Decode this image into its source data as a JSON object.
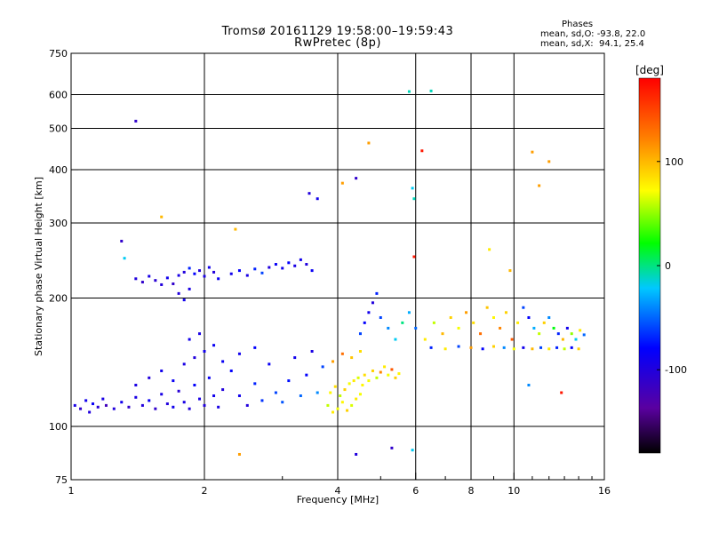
{
  "header": {
    "title_line1": "Tromsø 20161129 19:58:00–19:59:43",
    "title_line2": "RwPretec (8p)",
    "phases_heading": "Phases",
    "phases_o": "mean, sd,O: -93.8, 22.0",
    "phases_x": "mean, sd,X:  94.1, 25.4"
  },
  "chart_data": {
    "type": "scatter",
    "xlabel": "Frequency [MHz]",
    "ylabel": "Stationary phase Virtual Height [km]",
    "x_scale": "log",
    "y_scale": "log",
    "xlim": [
      1,
      16
    ],
    "ylim": [
      75,
      750
    ],
    "grid": true,
    "x_ticks": [
      1,
      2,
      4,
      6,
      8,
      10,
      16
    ],
    "x_tick_labels": [
      "1",
      "2",
      "4",
      "6",
      "8",
      "10",
      "16"
    ],
    "x_minor_ticks": [
      3,
      5,
      7,
      9,
      11,
      12,
      13,
      14,
      15
    ],
    "y_ticks": [
      75,
      100,
      200,
      300,
      400,
      500,
      600,
      750
    ],
    "y_tick_labels": [
      "75",
      "100",
      "200",
      "300",
      "400",
      "500",
      "600",
      "750"
    ],
    "colorbar": {
      "label": "[deg]",
      "range": [
        -180,
        180
      ],
      "ticks": [
        100,
        0,
        -100
      ],
      "tick_labels": [
        "100",
        "0",
        "-100"
      ]
    },
    "series": [
      {
        "points": [
          [
            1.02,
            112,
            -95
          ],
          [
            1.05,
            110,
            -110
          ],
          [
            1.08,
            115,
            -90
          ],
          [
            1.1,
            108,
            -100
          ],
          [
            1.12,
            113,
            -85
          ],
          [
            1.15,
            111,
            -105
          ],
          [
            1.18,
            116,
            -95
          ],
          [
            1.2,
            112,
            -120
          ],
          [
            1.25,
            110,
            -100
          ],
          [
            1.3,
            114,
            -90
          ],
          [
            1.35,
            111,
            -110
          ],
          [
            1.4,
            117,
            -95
          ],
          [
            1.45,
            112,
            -100
          ],
          [
            1.5,
            115,
            -85
          ],
          [
            1.55,
            110,
            -110
          ],
          [
            1.6,
            119,
            -95
          ],
          [
            1.65,
            113,
            -100
          ],
          [
            1.7,
            111,
            -90
          ],
          [
            1.75,
            121,
            -105
          ],
          [
            1.8,
            114,
            -95
          ],
          [
            1.85,
            110,
            -100
          ],
          [
            1.9,
            125,
            -80
          ],
          [
            1.95,
            116,
            -95
          ],
          [
            2.0,
            112,
            -100
          ],
          [
            2.05,
            130,
            -85
          ],
          [
            2.1,
            118,
            -90
          ],
          [
            2.15,
            111,
            -95
          ],
          [
            2.2,
            122,
            -100
          ],
          [
            2.3,
            135,
            -80
          ],
          [
            2.4,
            118,
            -90
          ],
          [
            2.5,
            112,
            -100
          ],
          [
            2.6,
            126,
            -70
          ],
          [
            2.7,
            115,
            -65
          ],
          [
            2.8,
            140,
            -85
          ],
          [
            2.9,
            120,
            -60
          ],
          [
            3.0,
            114,
            -55
          ],
          [
            3.1,
            128,
            -75
          ],
          [
            3.2,
            145,
            -90
          ],
          [
            3.3,
            118,
            -50
          ],
          [
            3.4,
            132,
            -80
          ],
          [
            3.5,
            150,
            -95
          ],
          [
            3.6,
            120,
            -40
          ],
          [
            3.7,
            138,
            -60
          ],
          [
            1.4,
            125,
            -95
          ],
          [
            1.5,
            130,
            -100
          ],
          [
            1.6,
            135,
            -90
          ],
          [
            1.7,
            128,
            -85
          ],
          [
            1.8,
            140,
            -95
          ],
          [
            1.9,
            145,
            -100
          ],
          [
            2.0,
            150,
            -90
          ],
          [
            2.1,
            155,
            -85
          ],
          [
            1.85,
            160,
            -90
          ],
          [
            1.95,
            165,
            -95
          ],
          [
            2.2,
            142,
            -85
          ],
          [
            2.4,
            148,
            -90
          ],
          [
            2.6,
            153,
            -80
          ]
        ]
      },
      {
        "points": [
          [
            1.4,
            222,
            -100
          ],
          [
            1.45,
            218,
            -110
          ],
          [
            1.5,
            225,
            -95
          ],
          [
            1.55,
            220,
            -105
          ],
          [
            1.6,
            215,
            -100
          ],
          [
            1.65,
            223,
            -90
          ],
          [
            1.7,
            216,
            -110
          ],
          [
            1.75,
            226,
            -95
          ],
          [
            1.8,
            230,
            -100
          ],
          [
            1.85,
            235,
            -70
          ],
          [
            1.9,
            228,
            -80
          ],
          [
            1.95,
            232,
            -100
          ],
          [
            2.0,
            225,
            -95
          ],
          [
            2.05,
            236,
            -90
          ],
          [
            2.1,
            230,
            -100
          ],
          [
            2.15,
            222,
            -85
          ],
          [
            2.3,
            228,
            -90
          ],
          [
            2.4,
            232,
            -80
          ],
          [
            2.5,
            226,
            -95
          ],
          [
            2.6,
            234,
            -70
          ],
          [
            2.7,
            229,
            -60
          ],
          [
            2.8,
            236,
            -100
          ],
          [
            2.9,
            240,
            -85
          ],
          [
            3.0,
            235,
            -90
          ],
          [
            3.1,
            242,
            -80
          ],
          [
            3.2,
            238,
            -95
          ],
          [
            3.3,
            246,
            -90
          ],
          [
            3.4,
            240,
            -100
          ],
          [
            3.5,
            232,
            -85
          ],
          [
            1.75,
            205,
            -100
          ],
          [
            1.8,
            198,
            -90
          ],
          [
            1.85,
            210,
            -95
          ]
        ]
      },
      {
        "points": [
          [
            3.8,
            112,
            60
          ],
          [
            3.9,
            108,
            80
          ],
          [
            4.0,
            110,
            70
          ],
          [
            4.1,
            114,
            75
          ],
          [
            4.2,
            109,
            90
          ],
          [
            4.3,
            112,
            65
          ],
          [
            4.4,
            116,
            80
          ],
          [
            4.5,
            119,
            70
          ],
          [
            3.85,
            120,
            75
          ],
          [
            3.95,
            124,
            85
          ],
          [
            4.05,
            118,
            60
          ],
          [
            4.15,
            122,
            90
          ],
          [
            4.25,
            126,
            70
          ],
          [
            4.35,
            128,
            80
          ],
          [
            4.45,
            130,
            65
          ],
          [
            4.55,
            125,
            75
          ],
          [
            4.6,
            132,
            85
          ],
          [
            4.7,
            128,
            70
          ],
          [
            4.8,
            135,
            90
          ],
          [
            4.9,
            130,
            60
          ],
          [
            5.0,
            134,
            120
          ],
          [
            5.1,
            138,
            80
          ],
          [
            5.2,
            132,
            70
          ],
          [
            5.3,
            136,
            140
          ],
          [
            5.4,
            130,
            90
          ],
          [
            5.5,
            133,
            75
          ],
          [
            3.9,
            142,
            110
          ],
          [
            4.1,
            148,
            130
          ],
          [
            4.3,
            145,
            95
          ],
          [
            4.5,
            150,
            85
          ]
        ]
      },
      {
        "points": [
          [
            4.5,
            165,
            -60
          ],
          [
            4.6,
            175,
            -80
          ],
          [
            4.7,
            185,
            -90
          ],
          [
            4.8,
            195,
            -100
          ],
          [
            4.9,
            205,
            -70
          ],
          [
            5.0,
            180,
            -60
          ],
          [
            5.2,
            170,
            -40
          ],
          [
            5.4,
            160,
            -20
          ],
          [
            5.6,
            175,
            0
          ],
          [
            5.8,
            185,
            -30
          ],
          [
            6.0,
            170,
            -50
          ],
          [
            6.3,
            160,
            80
          ],
          [
            6.6,
            175,
            60
          ],
          [
            6.9,
            165,
            100
          ],
          [
            7.2,
            180,
            90
          ],
          [
            7.5,
            170,
            70
          ],
          [
            7.8,
            185,
            110
          ],
          [
            8.1,
            175,
            85
          ],
          [
            8.4,
            165,
            130
          ],
          [
            8.7,
            190,
            95
          ],
          [
            9.0,
            180,
            75
          ],
          [
            9.3,
            170,
            120
          ],
          [
            9.6,
            185,
            90
          ],
          [
            9.9,
            160,
            140
          ],
          [
            10.2,
            175,
            80
          ],
          [
            10.5,
            190,
            -60
          ],
          [
            10.8,
            180,
            -80
          ],
          [
            11.1,
            170,
            -30
          ],
          [
            11.4,
            165,
            60
          ],
          [
            11.7,
            175,
            90
          ],
          [
            12.0,
            180,
            -40
          ],
          [
            12.3,
            170,
            20
          ],
          [
            12.6,
            165,
            -70
          ],
          [
            12.9,
            160,
            100
          ],
          [
            13.2,
            170,
            -90
          ],
          [
            13.5,
            165,
            50
          ],
          [
            13.8,
            160,
            -20
          ],
          [
            14.1,
            168,
            80
          ],
          [
            14.4,
            164,
            -50
          ]
        ]
      },
      {
        "points": [
          [
            6.5,
            153,
            -70
          ],
          [
            7.0,
            152,
            80
          ],
          [
            7.5,
            154,
            -60
          ],
          [
            8.0,
            153,
            110
          ],
          [
            8.5,
            152,
            -80
          ],
          [
            9.0,
            154,
            90
          ],
          [
            9.5,
            153,
            -40
          ],
          [
            10.0,
            152,
            70
          ],
          [
            10.5,
            153,
            -90
          ],
          [
            11.0,
            152,
            100
          ],
          [
            11.5,
            153,
            -60
          ],
          [
            12.0,
            152,
            80
          ],
          [
            12.5,
            153,
            -70
          ],
          [
            13.0,
            152,
            60
          ],
          [
            13.5,
            153,
            -80
          ],
          [
            14.0,
            152,
            90
          ]
        ]
      },
      {
        "points": [
          [
            1.4,
            520,
            -110
          ],
          [
            1.3,
            272,
            -110
          ],
          [
            1.32,
            248,
            -20
          ],
          [
            2.35,
            290,
            100
          ],
          [
            3.45,
            352,
            -100
          ],
          [
            3.6,
            342,
            -90
          ],
          [
            4.1,
            372,
            110
          ],
          [
            4.4,
            382,
            -110
          ],
          [
            4.7,
            462,
            110
          ],
          [
            5.8,
            610,
            -10
          ],
          [
            6.5,
            612,
            -10
          ],
          [
            6.2,
            443,
            170
          ],
          [
            5.9,
            362,
            -20
          ],
          [
            5.95,
            342,
            -10
          ],
          [
            5.95,
            250,
            170
          ],
          [
            11.0,
            440,
            110
          ],
          [
            12.0,
            418,
            110
          ],
          [
            11.4,
            367,
            110
          ],
          [
            4.4,
            86,
            -100
          ],
          [
            5.3,
            89,
            -110
          ],
          [
            2.4,
            86,
            110
          ],
          [
            5.9,
            88,
            -20
          ],
          [
            10.8,
            125,
            -40
          ],
          [
            12.8,
            120,
            170
          ],
          [
            1.6,
            310,
            100
          ],
          [
            8.8,
            260,
            80
          ],
          [
            9.8,
            232,
            100
          ]
        ]
      }
    ]
  }
}
